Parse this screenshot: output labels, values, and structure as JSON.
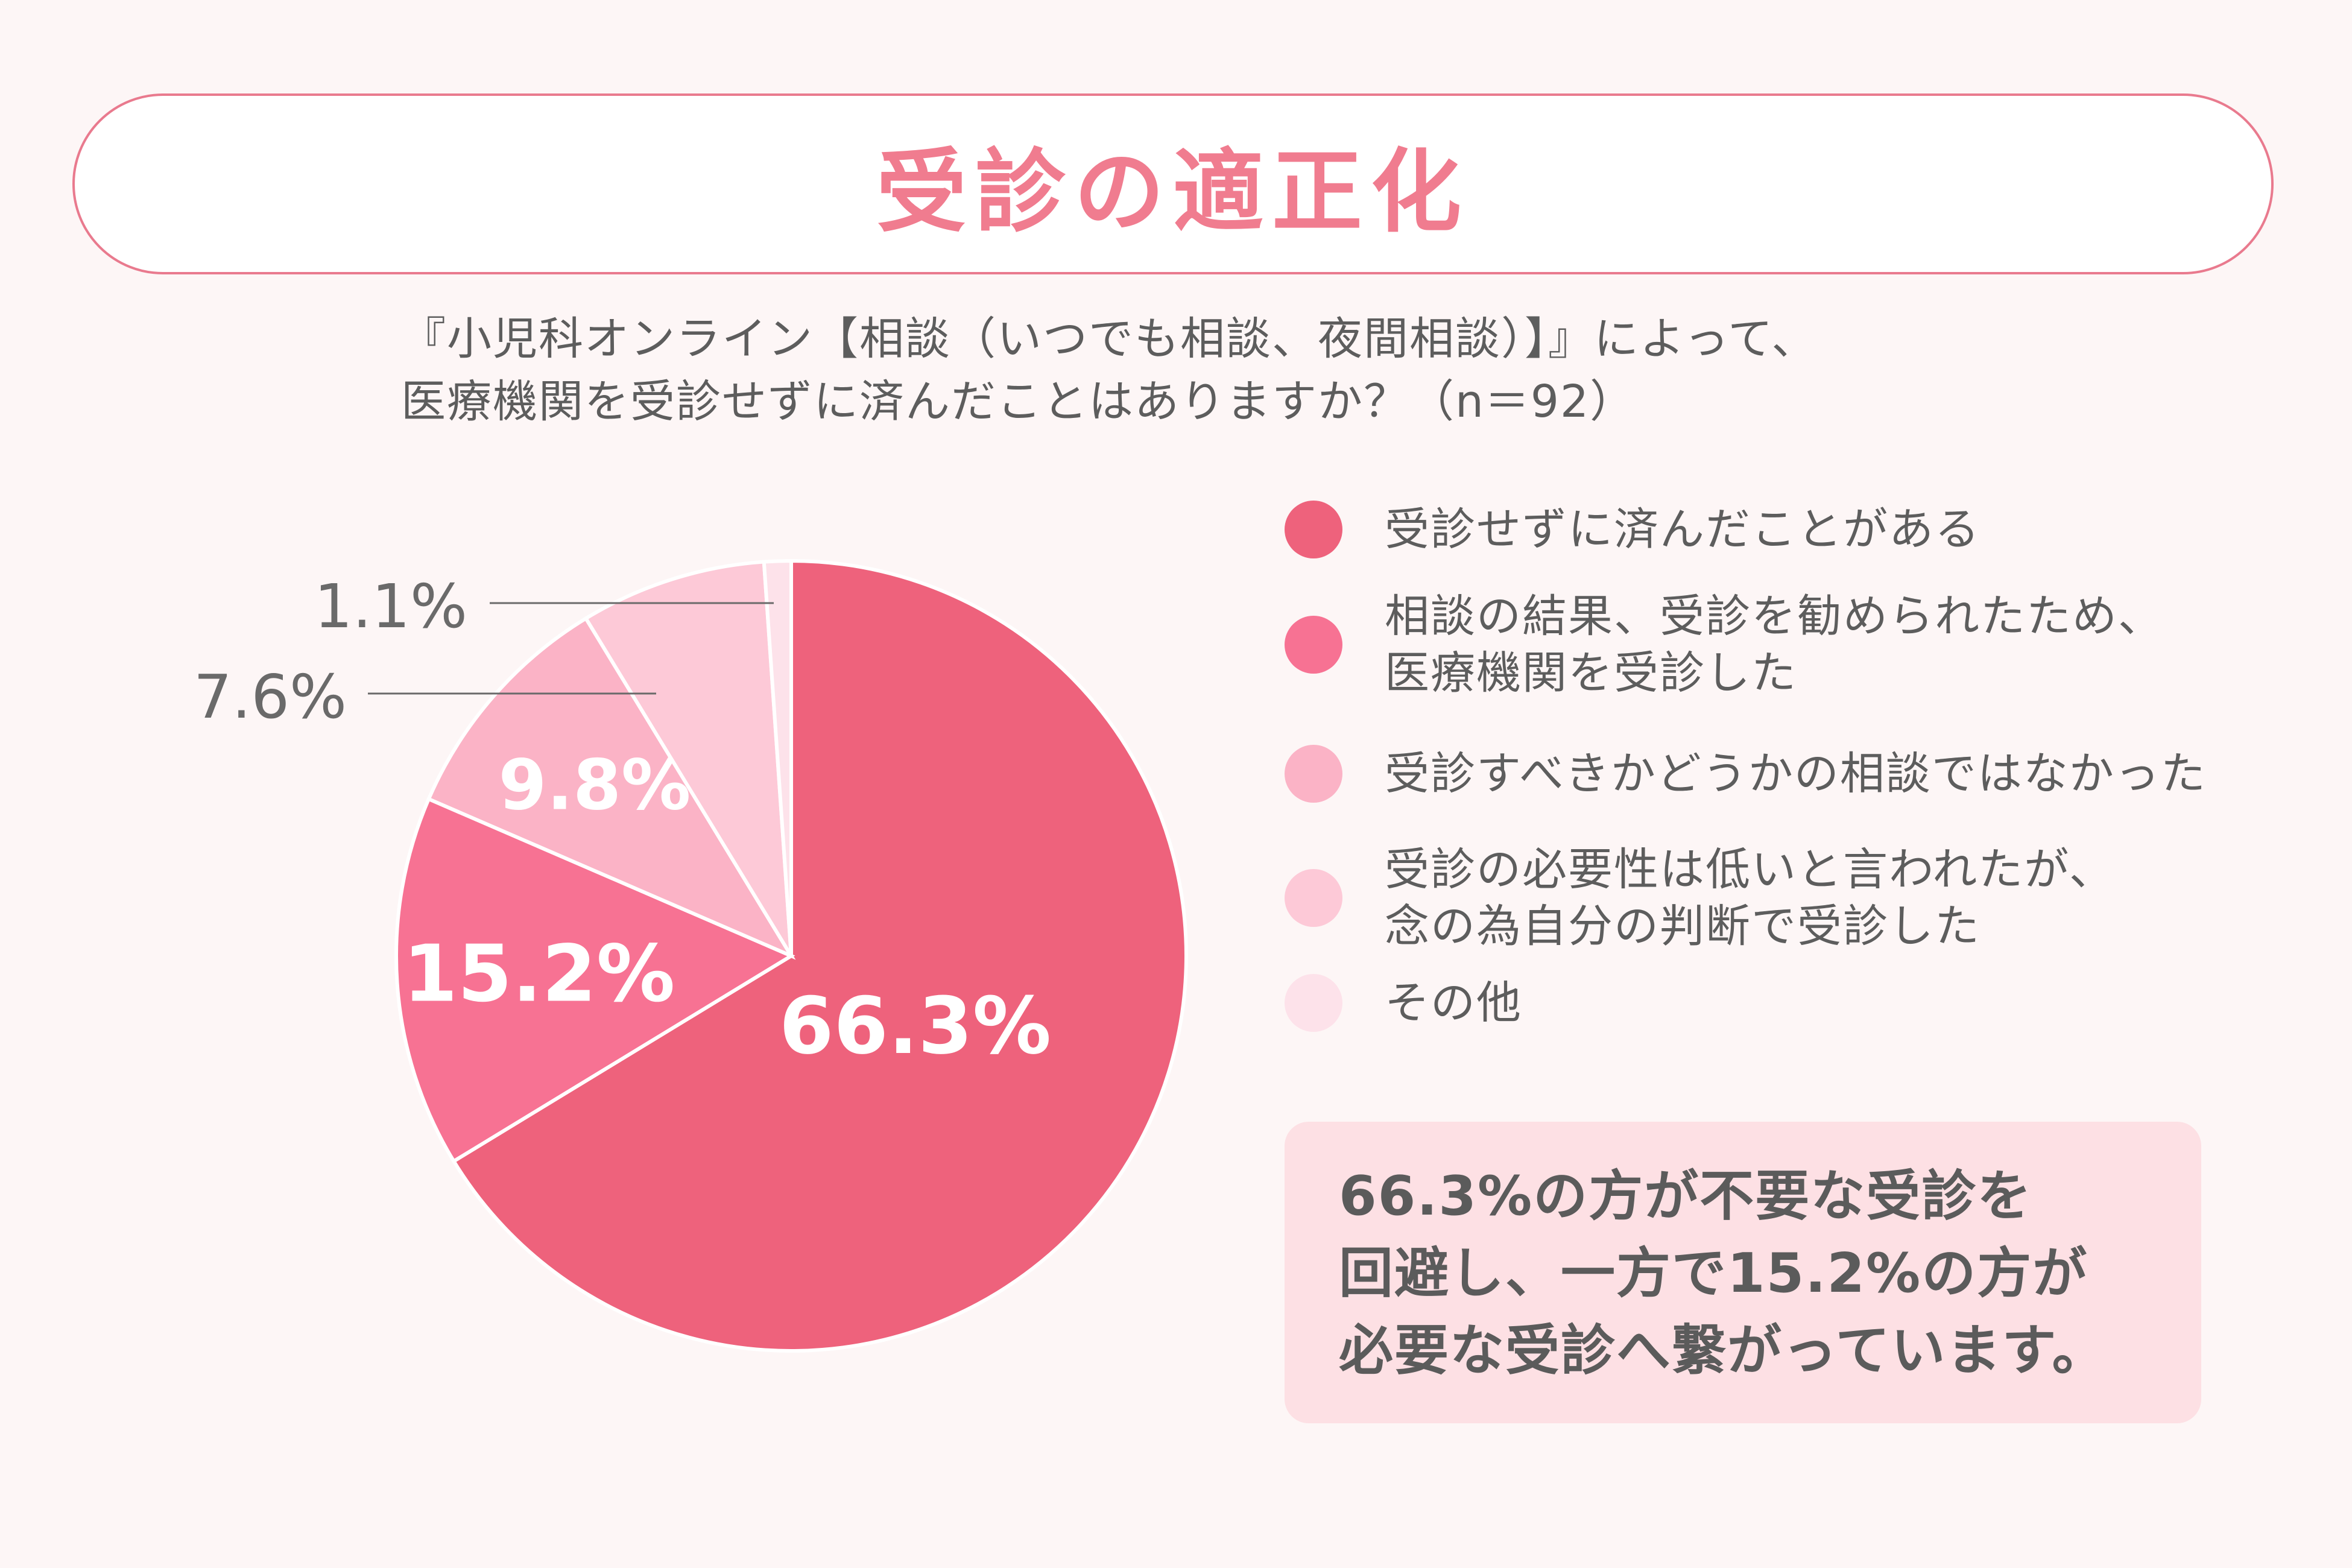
{
  "title": "受診の適正化",
  "question": {
    "line1": "『小児科オンライン【相談（いつでも相談、夜間相談）】』によって、",
    "line2": "医療機関を受診せずに済んだことはありますか？（n＝92）"
  },
  "chart_data": {
    "type": "pie",
    "title": "受診の適正化",
    "n": 92,
    "start": "12 o'clock, clockwise",
    "slices": [
      {
        "label": "受診せずに済んだことがある",
        "value": 66.3,
        "display": "66.3%",
        "color": "#ee627c",
        "label_pos": "inside"
      },
      {
        "label": "相談の結果、受診を勧められたため、医療機関を受診した",
        "value": 15.2,
        "display": "15.2%",
        "color": "#f77293",
        "label_pos": "inside"
      },
      {
        "label": "受診すべきかどうかの相談ではなかった",
        "value": 9.8,
        "display": "9.8%",
        "color": "#fbb3c6",
        "label_pos": "inside"
      },
      {
        "label": "受診の必要性は低いと言われたが、念の為自分の判断で受診した",
        "value": 7.6,
        "display": "7.6%",
        "color": "#fdc9d7",
        "label_pos": "outside"
      },
      {
        "label": "その他",
        "value": 1.1,
        "display": "1.1%",
        "color": "#fde2ea",
        "label_pos": "outside"
      }
    ]
  },
  "legend": [
    {
      "label": "受診せずに済んだことがある",
      "color": "#ee627c"
    },
    {
      "label": "相談の結果、受診を勧められたため、\n医療機関を受診した",
      "color": "#f77293"
    },
    {
      "label": "受診すべきかどうかの相談ではなかった",
      "color": "#fbb3c6"
    },
    {
      "label": "受診の必要性は低いと言われたが、\n念の為自分の判断で受診した",
      "color": "#fdc9d7"
    },
    {
      "label": "その他",
      "color": "#fde2ea"
    }
  ],
  "summary": "66.3%の方が不要な受診を\n回避し、一方で15.2%の方が\n必要な受診へ繋がっています。"
}
